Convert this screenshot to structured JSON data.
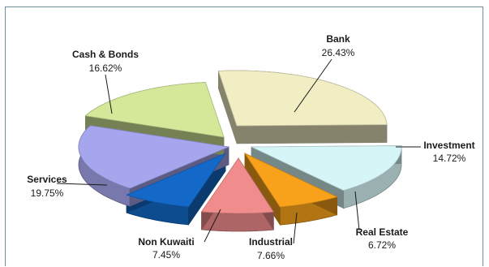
{
  "chart_data": {
    "type": "pie",
    "style": "3d-exploded",
    "title": "",
    "slices": [
      {
        "label": "Bank",
        "value": 26.43,
        "display": "26.43%",
        "color": "#f2eec4"
      },
      {
        "label": "Investment",
        "value": 14.72,
        "display": "14.72%",
        "color": "#d6f5f6"
      },
      {
        "label": "Real Estate",
        "value": 6.72,
        "display": "6.72%",
        "color": "#f7a21a"
      },
      {
        "label": "Industrial",
        "value": 7.66,
        "display": "7.66%",
        "color": "#f08c8c"
      },
      {
        "label": "Non Kuwaiti",
        "value": 7.45,
        "display": "7.45%",
        "color": "#1469c8"
      },
      {
        "label": "Services",
        "value": 19.75,
        "display": "19.75%",
        "color": "#a6a6ef"
      },
      {
        "label": "Cash & Bonds",
        "value": 16.62,
        "display": "16.62%",
        "color": "#d5e89a"
      }
    ]
  }
}
